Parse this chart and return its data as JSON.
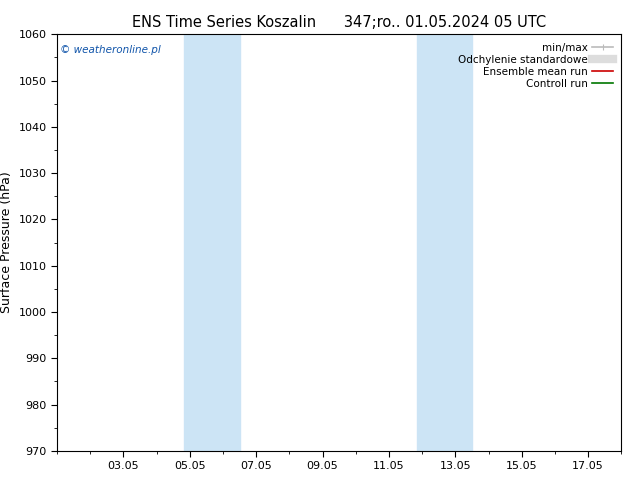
{
  "title_left": "ENS Time Series Koszalin",
  "title_right": "347;ro.. 01.05.2024 05 UTC",
  "ylabel": "Surface Pressure (hPa)",
  "ylim": [
    970,
    1060
  ],
  "yticks": [
    970,
    980,
    990,
    1000,
    1010,
    1020,
    1030,
    1040,
    1050,
    1060
  ],
  "xlim": [
    0,
    17
  ],
  "xtick_labels": [
    "03.05",
    "05.05",
    "07.05",
    "09.05",
    "11.05",
    "13.05",
    "15.05",
    "17.05"
  ],
  "xtick_positions": [
    2,
    4,
    6,
    8,
    10,
    12,
    14,
    16
  ],
  "shade_bands": [
    {
      "xmin": 3.83,
      "xmax": 5.5,
      "color": "#cce4f5",
      "alpha": 1.0
    },
    {
      "xmin": 10.83,
      "xmax": 12.5,
      "color": "#cce4f5",
      "alpha": 1.0
    }
  ],
  "legend_items": [
    {
      "label": "min/max",
      "color": "#bbbbbb",
      "lw": 1.2
    },
    {
      "label": "Odchylenie standardowe",
      "color": "#dddddd",
      "lw": 1.2
    },
    {
      "label": "Ensemble mean run",
      "color": "#cc0000",
      "lw": 1.2
    },
    {
      "label": "Controll run",
      "color": "#007700",
      "lw": 1.2
    }
  ],
  "watermark": "© weatheronline.pl",
  "watermark_color": "#1155aa",
  "background_color": "#ffffff",
  "plot_bg_color": "#ffffff",
  "title_fontsize": 10.5,
  "tick_fontsize": 8,
  "ylabel_fontsize": 9,
  "legend_fontsize": 7.5,
  "figsize": [
    6.34,
    4.9
  ],
  "dpi": 100
}
